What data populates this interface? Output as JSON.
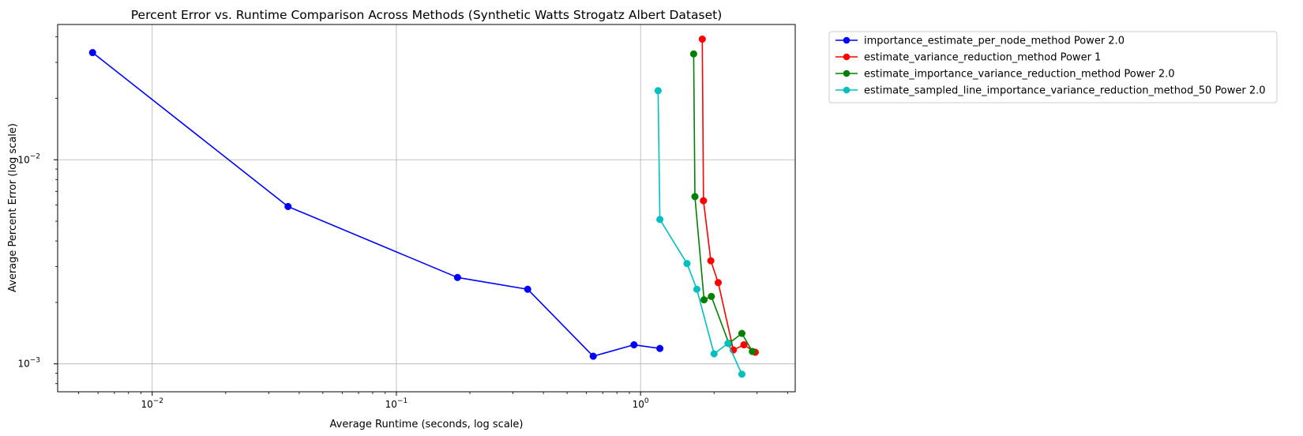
{
  "chart_data": {
    "type": "line",
    "title": "Percent Error vs. Runtime Comparison Across Methods (Synthetic Watts Strogatz Albert Dataset)",
    "xlabel": "Average Runtime (seconds, log scale)",
    "ylabel": "Average Percent Error (log scale)",
    "xscale": "log",
    "yscale": "log",
    "xlim": [
      0.0041,
      4.3
    ],
    "ylim": [
      0.00073,
      0.046
    ],
    "x_ticks": [
      {
        "value": 0.01,
        "base": "10",
        "exp": "−2"
      },
      {
        "value": 0.1,
        "base": "10",
        "exp": "−1"
      },
      {
        "value": 1,
        "base": "10",
        "exp": "0"
      }
    ],
    "y_ticks": [
      {
        "value": 0.001,
        "base": "10",
        "exp": "−3"
      },
      {
        "value": 0.01,
        "base": "10",
        "exp": "−2"
      }
    ],
    "grid": true,
    "marker": "circle",
    "legend_position": "outside-top-right",
    "series": [
      {
        "name": "importance_estimate_per_node_method Power 2.0",
        "color": "#0000ff",
        "x": [
          0.0057,
          0.036,
          0.178,
          0.345,
          0.64,
          0.94,
          1.2
        ],
        "y": [
          0.0335,
          0.0059,
          0.00265,
          0.00232,
          0.00109,
          0.00124,
          0.00119
        ]
      },
      {
        "name": "estimate_variance_reduction_method Power 1",
        "color": "#ff0000",
        "x": [
          1.79,
          1.81,
          1.94,
          2.08,
          2.4,
          2.65,
          2.95
        ],
        "y": [
          0.039,
          0.0063,
          0.0032,
          0.0025,
          0.00117,
          0.00124,
          0.00114
        ]
      },
      {
        "name": "estimate_importance_variance_reduction_method Power 2.0",
        "color": "#008000",
        "x": [
          1.65,
          1.67,
          1.82,
          1.95,
          2.3,
          2.6,
          2.87
        ],
        "y": [
          0.033,
          0.0066,
          0.00206,
          0.00214,
          0.00126,
          0.00141,
          0.00115
        ]
      },
      {
        "name": "estimate_sampled_line_importance_variance_reduction_method_50 Power 2.0",
        "color": "#00bfbf",
        "x": [
          1.18,
          1.2,
          1.55,
          1.7,
          2.0,
          2.28,
          2.6
        ],
        "y": [
          0.0218,
          0.0051,
          0.0031,
          0.00232,
          0.00112,
          0.00126,
          0.00089
        ]
      }
    ]
  }
}
